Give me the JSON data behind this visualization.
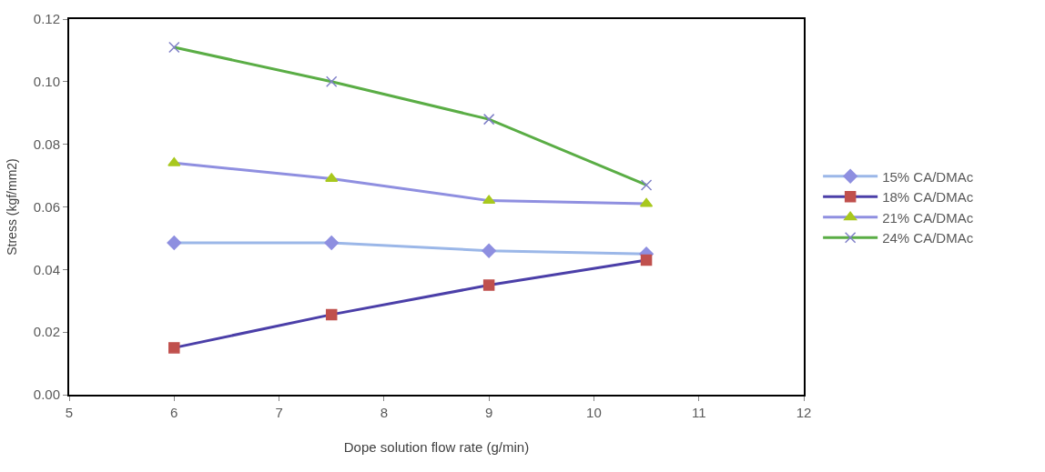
{
  "chart_data": {
    "type": "line",
    "xlabel": "Dope solution flow rate (g/min)",
    "ylabel": "Stress (kgf/mm2)",
    "x": [
      6,
      7.5,
      9,
      10.5
    ],
    "series": [
      {
        "name": "15% CA/DMAc",
        "color": "#9bb7e8",
        "colors": [
          "#8e8fe0",
          "#8e8fe0",
          "#8e8fe0",
          "#8e8fe0"
        ],
        "marker": "diamond",
        "values": [
          0.0485,
          0.0485,
          0.046,
          0.045
        ]
      },
      {
        "name": "18% CA/DMAc",
        "color": "#4b3fa8",
        "colors": [
          "#c0504d",
          "#c0504d",
          "#c0504d",
          "#c0504d"
        ],
        "marker": "square",
        "values": [
          0.015,
          0.0256,
          0.035,
          0.043
        ]
      },
      {
        "name": "21% CA/DMAc",
        "color": "#8f8fe0",
        "colors": [
          "#a8c81e",
          "#a8c81e",
          "#a8c81e",
          "#a8c81e"
        ],
        "marker": "triangle",
        "values": [
          0.074,
          0.069,
          0.062,
          0.061
        ]
      },
      {
        "name": "24% CA/DMAc",
        "color": "#5aad45",
        "colors": [
          "#8080c8",
          "#8080c8",
          "#8080c8",
          "#8080c8"
        ],
        "marker": "cross",
        "values": [
          0.111,
          0.1,
          0.088,
          0.067
        ]
      }
    ],
    "xlim": [
      5,
      12
    ],
    "xticks": [
      5,
      6,
      7,
      8,
      9,
      10,
      11,
      12
    ],
    "ylim": [
      0,
      0.12
    ],
    "yticks": [
      {
        "value": 0,
        "label": "0.00"
      },
      {
        "value": 0.02,
        "label": "0.02"
      },
      {
        "value": 0.04,
        "label": "0.04"
      },
      {
        "value": 0.06,
        "label": "0.06"
      },
      {
        "value": 0.08,
        "label": "0.08"
      },
      {
        "value": 0.1,
        "label": "0.10"
      },
      {
        "value": 0.12,
        "label": "0.12"
      }
    ],
    "legend": "right",
    "line_style": "solid"
  }
}
